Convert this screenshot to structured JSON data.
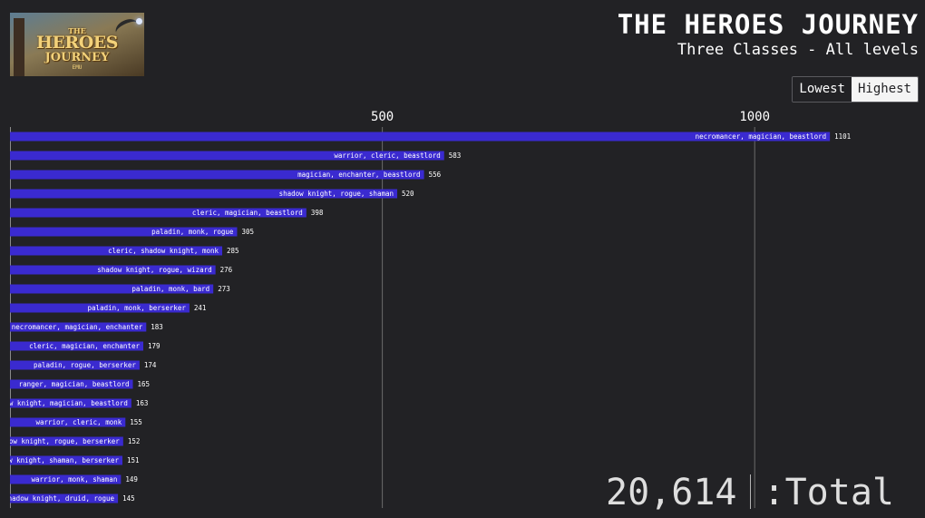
{
  "logo": {
    "line1": "THE",
    "line2": "HEROES",
    "line3": "JOURNEY",
    "line4": "EMU"
  },
  "header": {
    "title": "THE HEROES JOURNEY",
    "subtitle": "Three Classes - All levels"
  },
  "sort": {
    "lowest": "Lowest",
    "highest": "Highest",
    "active": "highest"
  },
  "total": {
    "value": "20,614",
    "label": ":Total"
  },
  "colors": {
    "background": "#222225",
    "bar": "#3a2ad0",
    "text": "#ffffff",
    "gridline": "#6b6b6b"
  },
  "chart_data": {
    "type": "bar",
    "orientation": "horizontal",
    "categories": [
      "necromancer, magician, beastlord",
      "warrior, cleric, beastlord",
      "magician, enchanter, beastlord",
      "shadow knight, rogue, shaman",
      "cleric, magician, beastlord",
      "paladin, monk, rogue",
      "cleric, shadow knight, monk",
      "shadow knight, rogue, wizard",
      "paladin, monk, bard",
      "paladin, monk, berserker",
      "necromancer, magician, enchanter",
      "cleric, magician, enchanter",
      "paladin, rogue, berserker",
      "ranger, magician, beastlord",
      "shadow knight, magician, beastlord",
      "warrior, cleric, monk",
      "shadow knight, rogue, berserker",
      "shadow knight, shaman, berserker",
      "warrior, monk, shaman",
      "shadow knight, druid, rogue"
    ],
    "values": [
      1101,
      583,
      556,
      520,
      398,
      305,
      285,
      276,
      273,
      241,
      183,
      179,
      174,
      165,
      163,
      155,
      152,
      151,
      149,
      145
    ],
    "xticks": [
      500,
      1000
    ],
    "xtick_labels": [
      "500",
      "1000"
    ],
    "xlim": [
      0,
      1230
    ],
    "title": "THE HEROES JOURNEY",
    "subtitle": "Three Classes - All levels",
    "grid": true
  }
}
